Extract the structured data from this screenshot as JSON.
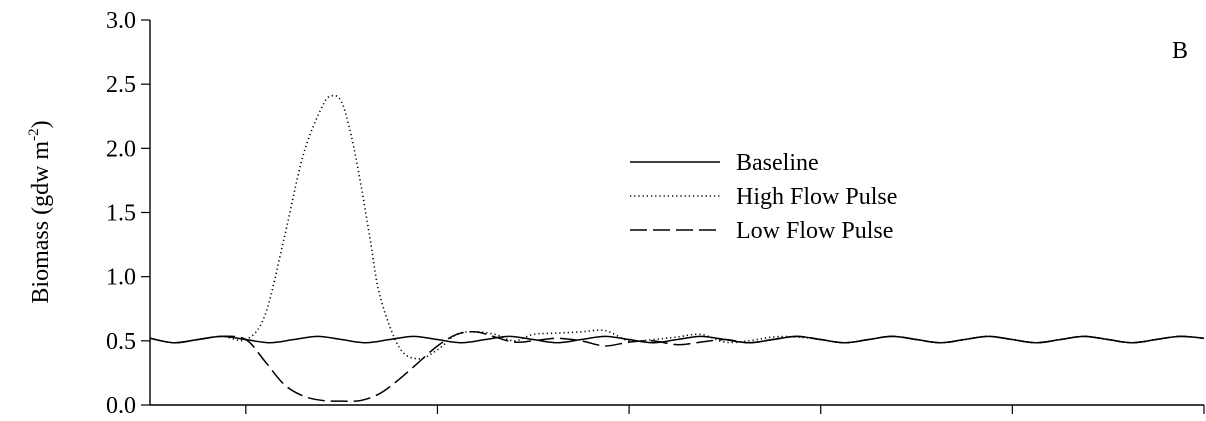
{
  "chart_data": {
    "type": "line",
    "panel_label": "B",
    "title": "",
    "xlabel": "",
    "ylabel": "Biomass (gdw m",
    "ylabel_sup": "-2",
    "ylabel_close": ")",
    "ylim": [
      0,
      3.0
    ],
    "xlim": [
      0,
      550
    ],
    "yticks": [
      "0.0",
      "0.5",
      "1.0",
      "1.5",
      "2.0",
      "2.5",
      "3.0"
    ],
    "xticks": [
      50,
      150,
      250,
      350,
      450,
      550
    ],
    "xtick_labels_shown": false,
    "grid": false,
    "legend_position": "upper-center",
    "series": [
      {
        "name": "Baseline",
        "style": "solid",
        "x": [
          0,
          12.5,
          25,
          37.5,
          50,
          62.5,
          75,
          87.5,
          100,
          112.5,
          125,
          137.5,
          150,
          162.5,
          175,
          187.5,
          200,
          212.5,
          225,
          237.5,
          250,
          262.5,
          275,
          287.5,
          300,
          312.5,
          325,
          337.5,
          350,
          362.5,
          375,
          387.5,
          400,
          412.5,
          425,
          437.5,
          450,
          462.5,
          475,
          487.5,
          500,
          512.5,
          525,
          537.5,
          550
        ],
        "y": [
          0.52,
          0.485,
          0.51,
          0.535,
          0.51,
          0.485,
          0.51,
          0.535,
          0.51,
          0.485,
          0.51,
          0.535,
          0.51,
          0.485,
          0.51,
          0.535,
          0.51,
          0.485,
          0.51,
          0.535,
          0.51,
          0.485,
          0.51,
          0.535,
          0.51,
          0.485,
          0.51,
          0.535,
          0.51,
          0.485,
          0.51,
          0.535,
          0.51,
          0.485,
          0.51,
          0.535,
          0.51,
          0.485,
          0.51,
          0.535,
          0.51,
          0.485,
          0.51,
          0.535,
          0.52
        ]
      },
      {
        "name": "High Flow Pulse",
        "style": "dotted",
        "x": [
          0,
          12.5,
          25,
          37.5,
          50,
          60,
          70,
          80,
          90,
          95,
          100,
          105,
          110,
          115,
          120,
          130,
          140,
          150,
          160,
          170,
          180,
          190,
          200,
          212.5,
          225,
          237.5,
          250,
          262.5,
          275,
          287.5,
          300,
          312.5,
          325,
          337.5,
          350,
          362.5,
          375,
          387.5,
          400,
          412.5,
          425,
          437.5,
          450,
          462.5,
          475,
          487.5,
          500,
          512.5,
          525,
          537.5,
          550
        ],
        "y": [
          0.52,
          0.485,
          0.51,
          0.535,
          0.51,
          0.7,
          1.3,
          1.95,
          2.33,
          2.41,
          2.36,
          2.1,
          1.72,
          1.28,
          0.85,
          0.45,
          0.36,
          0.43,
          0.55,
          0.57,
          0.55,
          0.5,
          0.55,
          0.56,
          0.57,
          0.58,
          0.5,
          0.51,
          0.53,
          0.55,
          0.49,
          0.5,
          0.53,
          0.53,
          0.51,
          0.485,
          0.51,
          0.535,
          0.51,
          0.485,
          0.51,
          0.535,
          0.51,
          0.485,
          0.51,
          0.535,
          0.51,
          0.485,
          0.51,
          0.535,
          0.52
        ]
      },
      {
        "name": "Low Flow Pulse",
        "style": "dashed",
        "x": [
          0,
          12.5,
          25,
          37.5,
          50,
          60,
          70,
          80,
          90,
          100,
          110,
          120,
          130,
          140,
          150,
          160,
          170,
          180,
          190,
          200,
          212.5,
          225,
          237.5,
          250,
          262.5,
          275,
          287.5,
          300,
          312.5,
          325,
          337.5,
          350,
          362.5,
          375,
          387.5,
          400,
          412.5,
          425,
          437.5,
          450,
          462.5,
          475,
          487.5,
          500,
          512.5,
          525,
          537.5,
          550
        ],
        "y": [
          0.52,
          0.485,
          0.51,
          0.535,
          0.51,
          0.34,
          0.16,
          0.07,
          0.035,
          0.03,
          0.035,
          0.09,
          0.2,
          0.33,
          0.46,
          0.55,
          0.57,
          0.53,
          0.49,
          0.5,
          0.52,
          0.5,
          0.46,
          0.49,
          0.5,
          0.47,
          0.49,
          0.51,
          0.485,
          0.51,
          0.535,
          0.51,
          0.485,
          0.51,
          0.535,
          0.51,
          0.485,
          0.51,
          0.535,
          0.51,
          0.485,
          0.51,
          0.535,
          0.51,
          0.485,
          0.51,
          0.535,
          0.52
        ]
      }
    ]
  }
}
